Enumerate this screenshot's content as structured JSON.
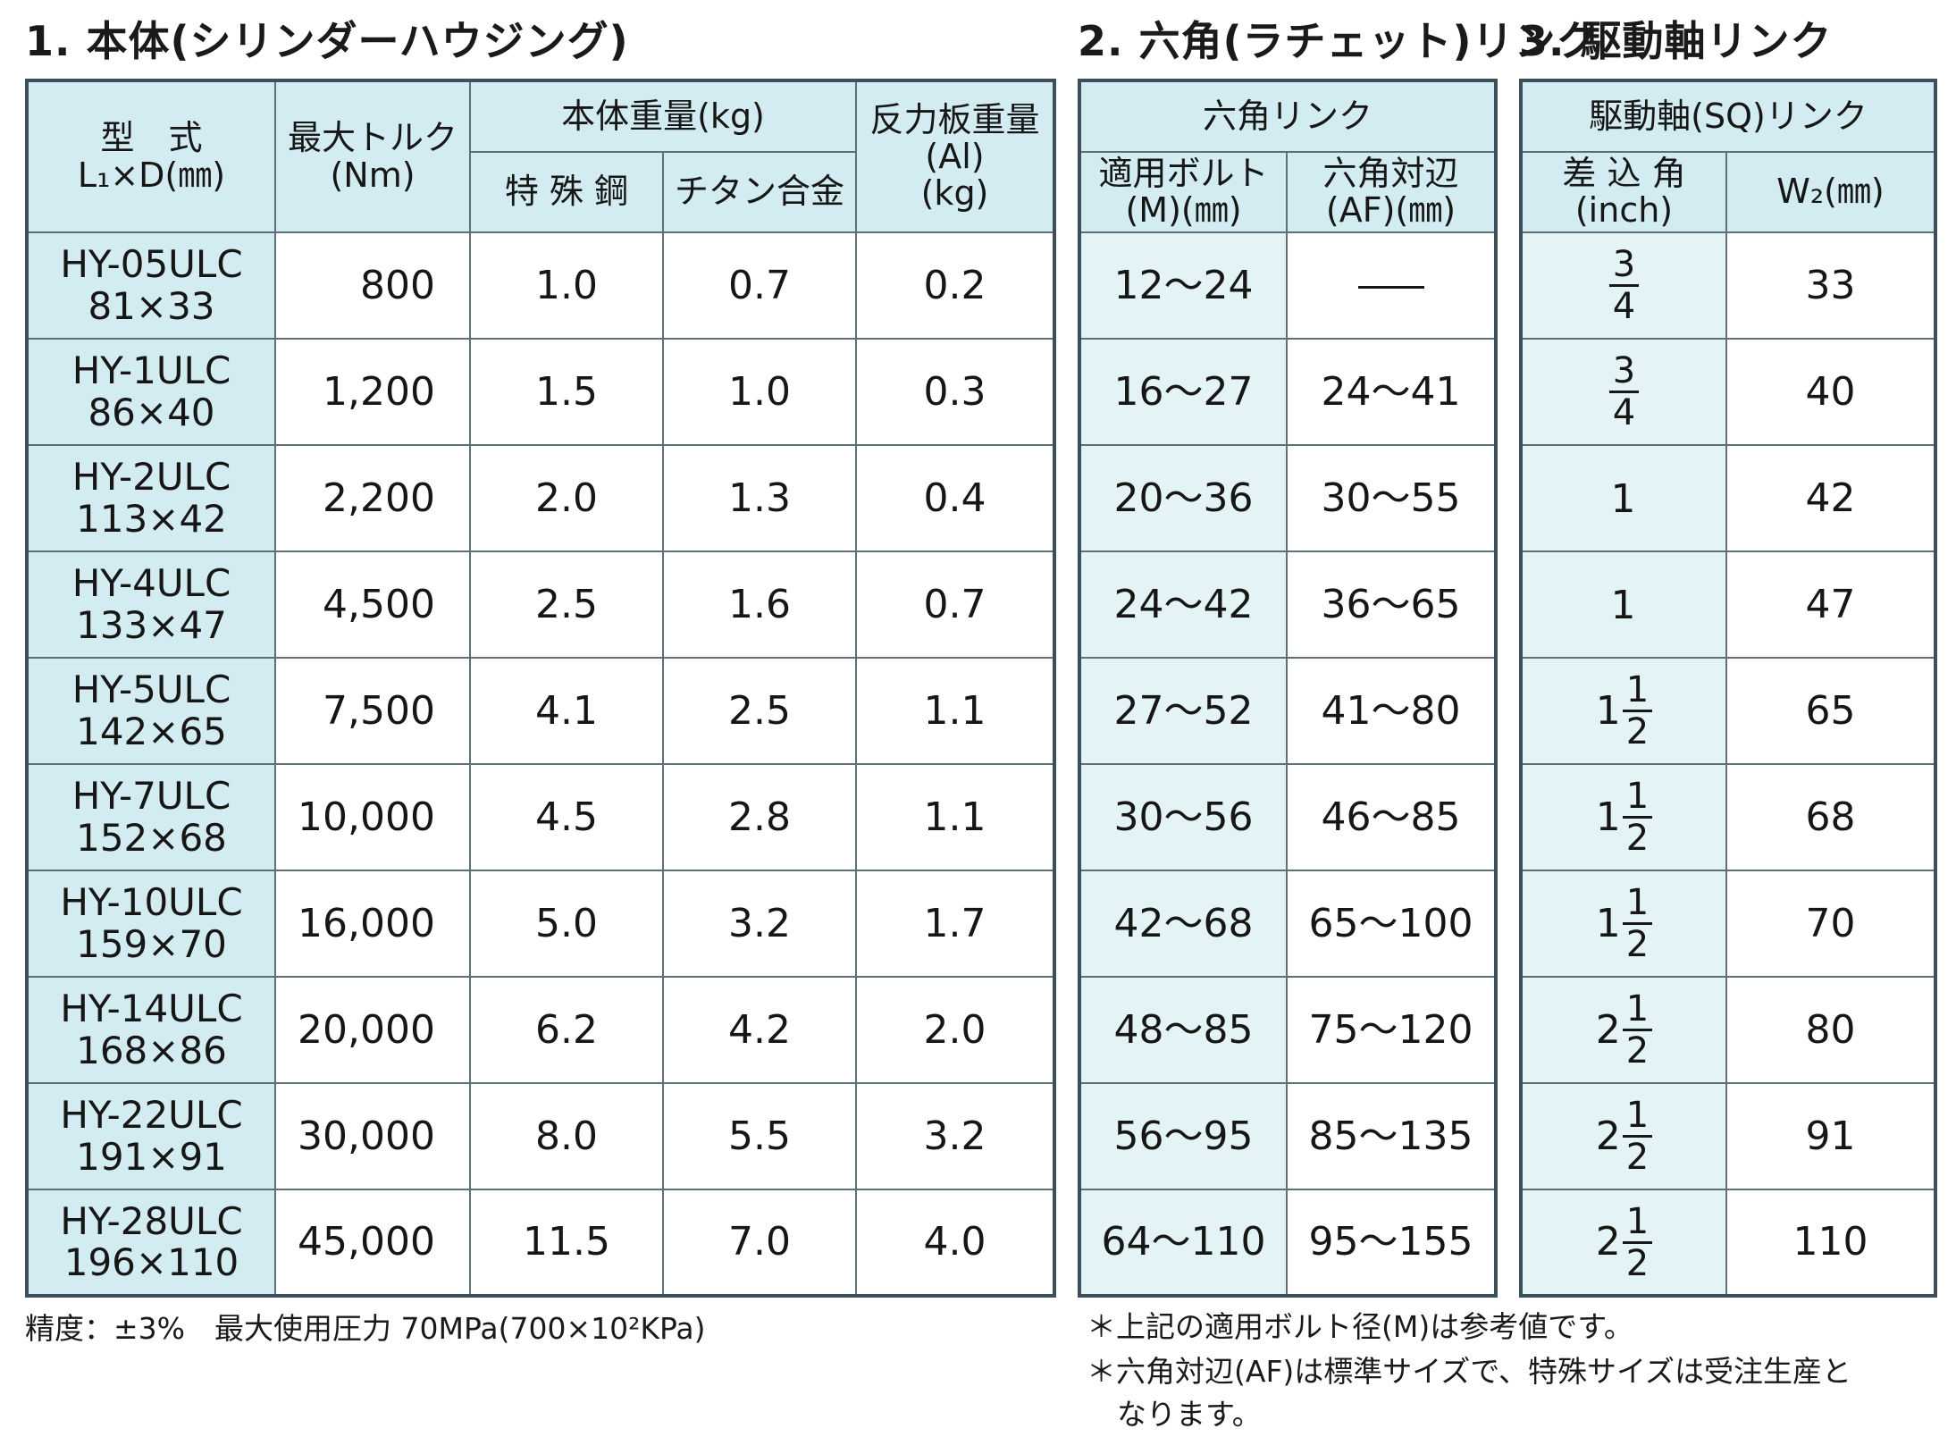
{
  "titles": {
    "body": "1. 本体(シリンダーハウジング)",
    "hex": "2. 六角(ラチェット)リンク",
    "drive": "3. 駆動軸リンク"
  },
  "table_body": {
    "headers": {
      "model_line1": "型　式",
      "model_line2": "L₁×D(㎜)",
      "max_torque": "最大トルク",
      "max_torque_unit": "(Nm)",
      "body_weight": "本体重量(kg)",
      "special_steel": "特 殊 鋼",
      "titanium": "チタン合金",
      "reaction_line1": "反力板重量",
      "reaction_line2": "(Al)",
      "reaction_line3": "(kg)"
    },
    "rows": [
      {
        "model": "HY-05ULC",
        "dim": "81×33",
        "torque": "800",
        "steel": "1.0",
        "titanium": "0.7",
        "reaction": "0.2"
      },
      {
        "model": "HY-1ULC",
        "dim": "86×40",
        "torque": "1,200",
        "steel": "1.5",
        "titanium": "1.0",
        "reaction": "0.3"
      },
      {
        "model": "HY-2ULC",
        "dim": "113×42",
        "torque": "2,200",
        "steel": "2.0",
        "titanium": "1.3",
        "reaction": "0.4"
      },
      {
        "model": "HY-4ULC",
        "dim": "133×47",
        "torque": "4,500",
        "steel": "2.5",
        "titanium": "1.6",
        "reaction": "0.7"
      },
      {
        "model": "HY-5ULC",
        "dim": "142×65",
        "torque": "7,500",
        "steel": "4.1",
        "titanium": "2.5",
        "reaction": "1.1"
      },
      {
        "model": "HY-7ULC",
        "dim": "152×68",
        "torque": "10,000",
        "steel": "4.5",
        "titanium": "2.8",
        "reaction": "1.1"
      },
      {
        "model": "HY-10ULC",
        "dim": "159×70",
        "torque": "16,000",
        "steel": "5.0",
        "titanium": "3.2",
        "reaction": "1.7"
      },
      {
        "model": "HY-14ULC",
        "dim": "168×86",
        "torque": "20,000",
        "steel": "6.2",
        "titanium": "4.2",
        "reaction": "2.0"
      },
      {
        "model": "HY-22ULC",
        "dim": "191×91",
        "torque": "30,000",
        "steel": "8.0",
        "titanium": "5.5",
        "reaction": "3.2"
      },
      {
        "model": "HY-28ULC",
        "dim": "196×110",
        "torque": "45,000",
        "steel": "11.5",
        "titanium": "7.0",
        "reaction": "4.0"
      }
    ]
  },
  "table_hex": {
    "headers": {
      "group": "六角リンク",
      "bolt_line1": "適用ボルト",
      "bolt_line2": "(M)(㎜)",
      "af_line1": "六角対辺",
      "af_line2": "(AF)(㎜)"
    },
    "rows": [
      {
        "bolt": "12～24",
        "af": ""
      },
      {
        "bolt": "16～27",
        "af": "24～41"
      },
      {
        "bolt": "20～36",
        "af": "30～55"
      },
      {
        "bolt": "24～42",
        "af": "36～65"
      },
      {
        "bolt": "27～52",
        "af": "41～80"
      },
      {
        "bolt": "30～56",
        "af": "46～85"
      },
      {
        "bolt": "42～68",
        "af": "65～100"
      },
      {
        "bolt": "48～85",
        "af": "75～120"
      },
      {
        "bolt": "56～95",
        "af": "85～135"
      },
      {
        "bolt": "64～110",
        "af": "95～155"
      }
    ]
  },
  "table_drive": {
    "headers": {
      "group": "駆動軸(SQ)リンク",
      "sq_line1": "差 込 角",
      "sq_line2": "(inch)",
      "w2": "W₂(㎜)"
    },
    "rows": [
      {
        "whole": "",
        "num": "3",
        "den": "4",
        "w2": "33"
      },
      {
        "whole": "",
        "num": "3",
        "den": "4",
        "w2": "40"
      },
      {
        "whole": "1",
        "num": "",
        "den": "",
        "w2": "42"
      },
      {
        "whole": "1",
        "num": "",
        "den": "",
        "w2": "47"
      },
      {
        "whole": "1",
        "num": "1",
        "den": "2",
        "w2": "65"
      },
      {
        "whole": "1",
        "num": "1",
        "den": "2",
        "w2": "68"
      },
      {
        "whole": "1",
        "num": "1",
        "den": "2",
        "w2": "70"
      },
      {
        "whole": "2",
        "num": "1",
        "den": "2",
        "w2": "80"
      },
      {
        "whole": "2",
        "num": "1",
        "den": "2",
        "w2": "91"
      },
      {
        "whole": "2",
        "num": "1",
        "den": "2",
        "w2": "110"
      }
    ]
  },
  "notes": {
    "accuracy": "精度：±3%　最大使用圧力 70MPa(700×10²KPa)",
    "note1": "＊上記の適用ボルト径(M)は参考値です。",
    "note2": "＊六角対辺(AF)は標準サイズで、特殊サイズは受注生産と",
    "note3": "なります。"
  },
  "colors": {
    "header_bg": "#d2ecf2",
    "border": "#3c4f5a"
  }
}
